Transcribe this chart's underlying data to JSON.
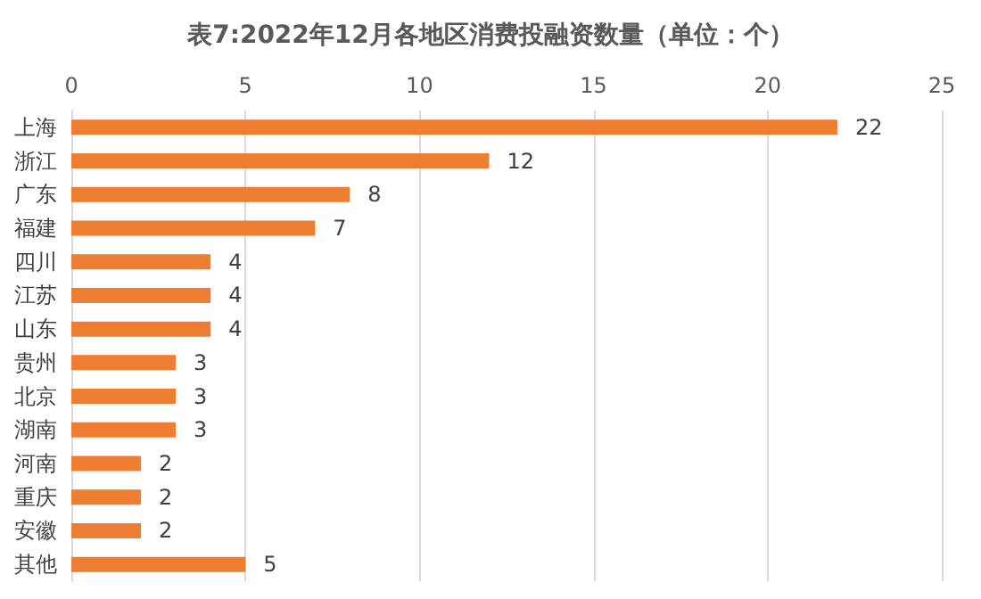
{
  "chart_data": {
    "type": "bar",
    "orientation": "horizontal",
    "title": "表7:2022年12月各地区消费投融资数量（单位：个）",
    "categories": [
      "上海",
      "浙江",
      "广东",
      "福建",
      "四川",
      "江苏",
      "山东",
      "贵州",
      "北京",
      "湖南",
      "河南",
      "重庆",
      "安徽",
      "其他"
    ],
    "values": [
      22,
      12,
      8,
      7,
      4,
      4,
      4,
      3,
      3,
      3,
      2,
      2,
      2,
      5
    ],
    "color": "#ed7d31",
    "xlim": [
      0,
      25
    ],
    "xticks": [
      0,
      5,
      10,
      15,
      20,
      25
    ],
    "grid": true,
    "data_labels": true
  }
}
